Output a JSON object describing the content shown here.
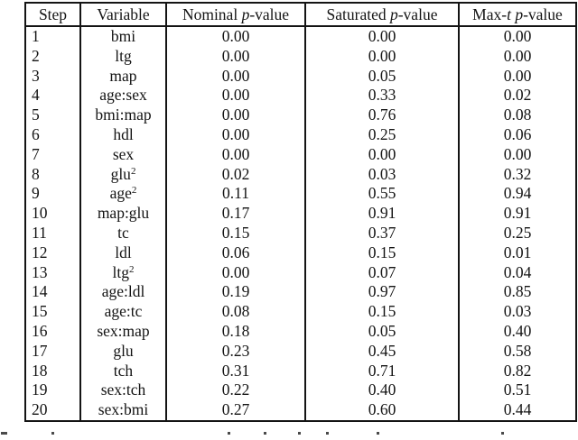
{
  "page": {
    "background": "#ffffff",
    "text_color": "#141414",
    "border_color": "#141414"
  },
  "table": {
    "headers": [
      {
        "key": "step",
        "label": "Step"
      },
      {
        "key": "variable",
        "label": "Variable"
      },
      {
        "key": "nominal",
        "label": "Nominal {p}-value"
      },
      {
        "key": "saturated",
        "label": "Saturated {p}-value"
      },
      {
        "key": "maxt",
        "label": "Max-{t} {p}-value"
      }
    ],
    "rows": [
      [
        "1",
        "bmi",
        "0.00",
        "0.00",
        "0.00"
      ],
      [
        "2",
        "ltg",
        "0.00",
        "0.00",
        "0.00"
      ],
      [
        "3",
        "map",
        "0.00",
        "*0.05*",
        "0.00"
      ],
      [
        "4",
        "age:sex",
        "0.00",
        "0.33",
        "0.02"
      ],
      [
        "5",
        "bmi:map",
        "0.00",
        "0.76",
        "0.08"
      ],
      [
        "6",
        "hdl",
        "0.00",
        "0.25",
        "0.06"
      ],
      [
        "7",
        "sex",
        "0.00",
        "0.00",
        "0.00"
      ],
      [
        "8",
        "glu^2",
        "0.02",
        "0.03",
        "*0.32*"
      ],
      [
        "9",
        "age^2",
        "0.11",
        "0.55",
        "0.94"
      ],
      [
        "10",
        "map:glu",
        "0.17",
        "0.91",
        "0.91"
      ],
      [
        "11",
        "tc",
        "0.15",
        "0.37",
        "0.25"
      ],
      [
        "12",
        "ldl",
        "0.06",
        "0.15",
        "0.01"
      ],
      [
        "13",
        "ltg^2",
        "0.00",
        "0.07",
        "0.04"
      ],
      [
        "14",
        "age:ldl",
        "0.19",
        "0.97",
        "0.85"
      ],
      [
        "15",
        "age:tc",
        "0.08",
        "0.15",
        "0.03"
      ],
      [
        "16",
        "sex:map",
        "0.18",
        "0.05",
        "0.40"
      ],
      [
        "17",
        "glu",
        "0.23",
        "0.45",
        "0.58"
      ],
      [
        "18",
        "tch",
        "*0.31*",
        "0.71",
        "0.82"
      ],
      [
        "19",
        "sex:tch",
        "0.22",
        "0.40",
        "0.51"
      ],
      [
        "20",
        "sex:bmi",
        "0.27",
        "0.60",
        "0.44"
      ]
    ],
    "notes": {
      "bold_cells_meaning": "bold values marked with *asterisks* in rows",
      "superscript_marker": "^2 renders as superscript 2"
    }
  },
  "cropped_caption": {
    "readable_text": "",
    "stroke_positions_x": [
      1,
      57,
      252,
      292,
      330,
      361,
      417,
      555
    ],
    "first_stroke_width": 7
  }
}
